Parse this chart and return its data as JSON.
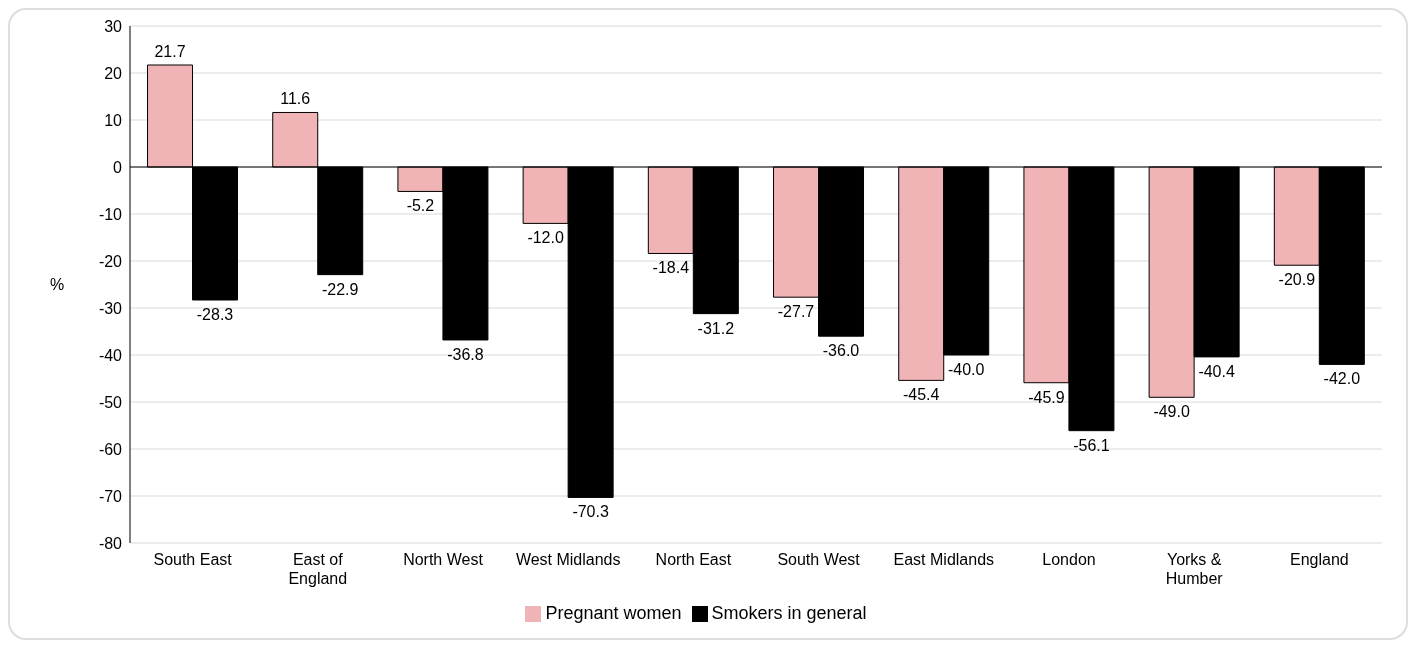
{
  "chart_data": {
    "type": "bar",
    "ylabel": "%",
    "categories": [
      "South East",
      "East of England",
      "North West",
      "West Midlands",
      "North East",
      "South West",
      "East Midlands",
      "London",
      "Yorks & Humber",
      "England"
    ],
    "series": [
      {
        "name": "Pregnant women",
        "color": "#f0b4b6",
        "values": [
          21.7,
          11.6,
          -5.2,
          -12.0,
          -18.4,
          -27.7,
          -45.4,
          -45.9,
          -49.0,
          -20.9
        ],
        "value_labels": [
          "21.7",
          "11.6",
          "-5.2",
          "-12.0",
          "-18.4",
          "-27.7",
          "-45.4",
          "-45.9",
          "-49.0",
          "-20.9"
        ]
      },
      {
        "name": "Smokers in general",
        "color": "#000000",
        "values": [
          -28.3,
          -22.9,
          -36.8,
          -70.3,
          -31.2,
          -36.0,
          -40.0,
          -56.1,
          -40.4,
          -42.0
        ],
        "value_labels": [
          "-28.3",
          "-22.9",
          "-36.8",
          "-70.3",
          "-31.2",
          "-36.0",
          "-40.0",
          "-56.1",
          "-40.4",
          "-42.0"
        ]
      }
    ],
    "ylim": [
      -80,
      30
    ],
    "yticks": [
      -80,
      -70,
      -60,
      -50,
      -40,
      -30,
      -20,
      -10,
      0,
      10,
      20,
      30
    ],
    "grid": "y",
    "legend": "bottom"
  }
}
